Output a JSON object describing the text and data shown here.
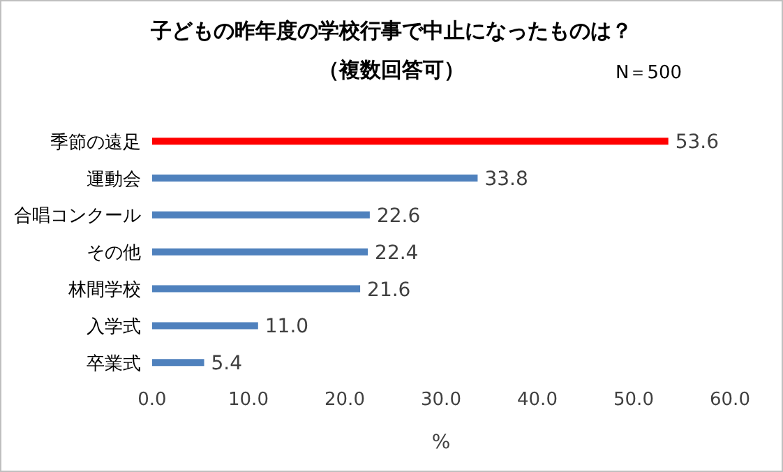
{
  "chart_data": {
    "type": "bar",
    "orientation": "horizontal",
    "title": "子どもの昨年度の学校行事で中止になったものは？",
    "subtitle": "（複数回答可）",
    "annotations": [
      "N＝500"
    ],
    "xlabel": "%",
    "categories": [
      "季節の遠足",
      "運動会",
      "合唱コンクール",
      "その他",
      "林間学校",
      "入学式",
      "卒業式"
    ],
    "values": [
      53.6,
      33.8,
      22.6,
      22.4,
      21.6,
      11.0,
      5.4
    ],
    "value_labels": [
      "53.6",
      "33.8",
      "22.6",
      "22.4",
      "21.6",
      "11.0",
      "5.4"
    ],
    "colors": [
      "#ff0000",
      "#4f81bd",
      "#4f81bd",
      "#4f81bd",
      "#4f81bd",
      "#4f81bd",
      "#4f81bd"
    ],
    "xlim": [
      0,
      60
    ],
    "xticks": [
      {
        "value": 0,
        "label": "0.0"
      },
      {
        "value": 10,
        "label": "10.0"
      },
      {
        "value": 20,
        "label": "20.0"
      },
      {
        "value": 30,
        "label": "30.0"
      },
      {
        "value": 40,
        "label": "40.0"
      },
      {
        "value": 50,
        "label": "50.0"
      },
      {
        "value": 60,
        "label": "60.0"
      }
    ],
    "grid": false,
    "legend": false
  }
}
